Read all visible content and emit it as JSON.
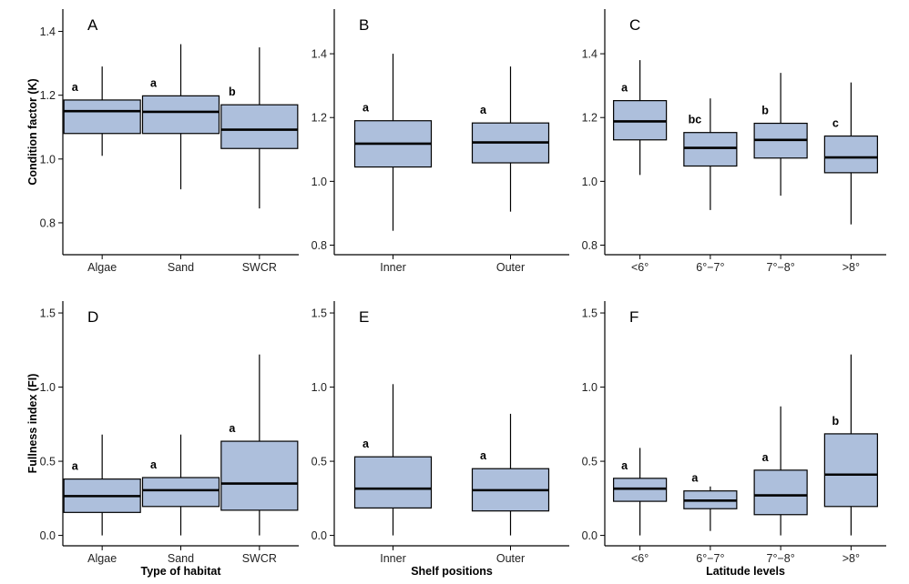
{
  "box_fill": "#adbfdc",
  "line_color": "#000000",
  "chart_data": [
    {
      "type": "boxplot",
      "panel_label": "A",
      "xlabel": "",
      "ylabel": "Condition factor (K)",
      "ylim": [
        0.7,
        1.47
      ],
      "yticks": [
        "0.8",
        "1.0",
        "1.2",
        "1.4"
      ],
      "categories": [
        "Algae",
        "Sand",
        "SWCR"
      ],
      "boxes": [
        {
          "whisker_low": 1.01,
          "q1": 1.08,
          "median": 1.15,
          "q3": 1.185,
          "whisker_high": 1.29
        },
        {
          "whisker_low": 0.905,
          "q1": 1.08,
          "median": 1.148,
          "q3": 1.198,
          "whisker_high": 1.36
        },
        {
          "whisker_low": 0.845,
          "q1": 1.033,
          "median": 1.092,
          "q3": 1.17,
          "whisker_high": 1.35
        }
      ],
      "group_letters": [
        "a",
        "a",
        "b"
      ]
    },
    {
      "type": "boxplot",
      "panel_label": "B",
      "xlabel": "",
      "ylabel": "",
      "ylim": [
        0.77,
        1.54
      ],
      "yticks": [
        "0.8",
        "1.0",
        "1.2",
        "1.4"
      ],
      "categories": [
        "Inner",
        "Outer"
      ],
      "boxes": [
        {
          "whisker_low": 0.845,
          "q1": 1.045,
          "median": 1.118,
          "q3": 1.19,
          "whisker_high": 1.4
        },
        {
          "whisker_low": 0.905,
          "q1": 1.058,
          "median": 1.122,
          "q3": 1.183,
          "whisker_high": 1.36
        }
      ],
      "group_letters": [
        "a",
        "a"
      ]
    },
    {
      "type": "boxplot",
      "panel_label": "C",
      "xlabel": "",
      "ylabel": "",
      "ylim": [
        0.77,
        1.54
      ],
      "yticks": [
        "0.8",
        "1.0",
        "1.2",
        "1.4"
      ],
      "categories": [
        "<6°",
        "6°−7°",
        "7°−8°",
        ">8°"
      ],
      "boxes": [
        {
          "whisker_low": 1.02,
          "q1": 1.13,
          "median": 1.188,
          "q3": 1.253,
          "whisker_high": 1.38
        },
        {
          "whisker_low": 0.91,
          "q1": 1.048,
          "median": 1.105,
          "q3": 1.153,
          "whisker_high": 1.26
        },
        {
          "whisker_low": 0.955,
          "q1": 1.073,
          "median": 1.13,
          "q3": 1.182,
          "whisker_high": 1.34
        },
        {
          "whisker_low": 0.865,
          "q1": 1.027,
          "median": 1.075,
          "q3": 1.142,
          "whisker_high": 1.31
        }
      ],
      "group_letters": [
        "a",
        "bc",
        "b",
        "c"
      ]
    },
    {
      "type": "boxplot",
      "panel_label": "D",
      "xlabel": "Type of habitat",
      "ylabel": "Fullness index (FI)",
      "ylim": [
        -0.07,
        1.58
      ],
      "yticks": [
        "0.0",
        "0.5",
        "1.0",
        "1.5"
      ],
      "categories": [
        "Algae",
        "Sand",
        "SWCR"
      ],
      "boxes": [
        {
          "whisker_low": 0.0,
          "q1": 0.155,
          "median": 0.265,
          "q3": 0.38,
          "whisker_high": 0.68
        },
        {
          "whisker_low": 0.0,
          "q1": 0.195,
          "median": 0.305,
          "q3": 0.39,
          "whisker_high": 0.68
        },
        {
          "whisker_low": 0.0,
          "q1": 0.17,
          "median": 0.35,
          "q3": 0.635,
          "whisker_high": 1.22
        }
      ],
      "group_letters": [
        "a",
        "a",
        "a"
      ]
    },
    {
      "type": "boxplot",
      "panel_label": "E",
      "xlabel": "Shelf positions",
      "ylabel": "",
      "ylim": [
        -0.07,
        1.58
      ],
      "yticks": [
        "0.0",
        "0.5",
        "1.0",
        "1.5"
      ],
      "categories": [
        "Inner",
        "Outer"
      ],
      "boxes": [
        {
          "whisker_low": 0.0,
          "q1": 0.185,
          "median": 0.315,
          "q3": 0.53,
          "whisker_high": 1.02
        },
        {
          "whisker_low": 0.0,
          "q1": 0.165,
          "median": 0.305,
          "q3": 0.45,
          "whisker_high": 0.82
        }
      ],
      "group_letters": [
        "a",
        "a"
      ]
    },
    {
      "type": "boxplot",
      "panel_label": "F",
      "xlabel": "Latitude levels",
      "ylabel": "",
      "ylim": [
        -0.07,
        1.58
      ],
      "yticks": [
        "0.0",
        "0.5",
        "1.0",
        "1.5"
      ],
      "categories": [
        "<6°",
        "6°−7°",
        "7°−8°",
        ">8°"
      ],
      "boxes": [
        {
          "whisker_low": 0.0,
          "q1": 0.23,
          "median": 0.315,
          "q3": 0.385,
          "whisker_high": 0.59
        },
        {
          "whisker_low": 0.03,
          "q1": 0.18,
          "median": 0.235,
          "q3": 0.3,
          "whisker_high": 0.33
        },
        {
          "whisker_low": 0.0,
          "q1": 0.14,
          "median": 0.27,
          "q3": 0.44,
          "whisker_high": 0.87
        },
        {
          "whisker_low": 0.0,
          "q1": 0.195,
          "median": 0.41,
          "q3": 0.685,
          "whisker_high": 1.22
        }
      ],
      "group_letters": [
        "a",
        "a",
        "a",
        "b"
      ]
    }
  ]
}
